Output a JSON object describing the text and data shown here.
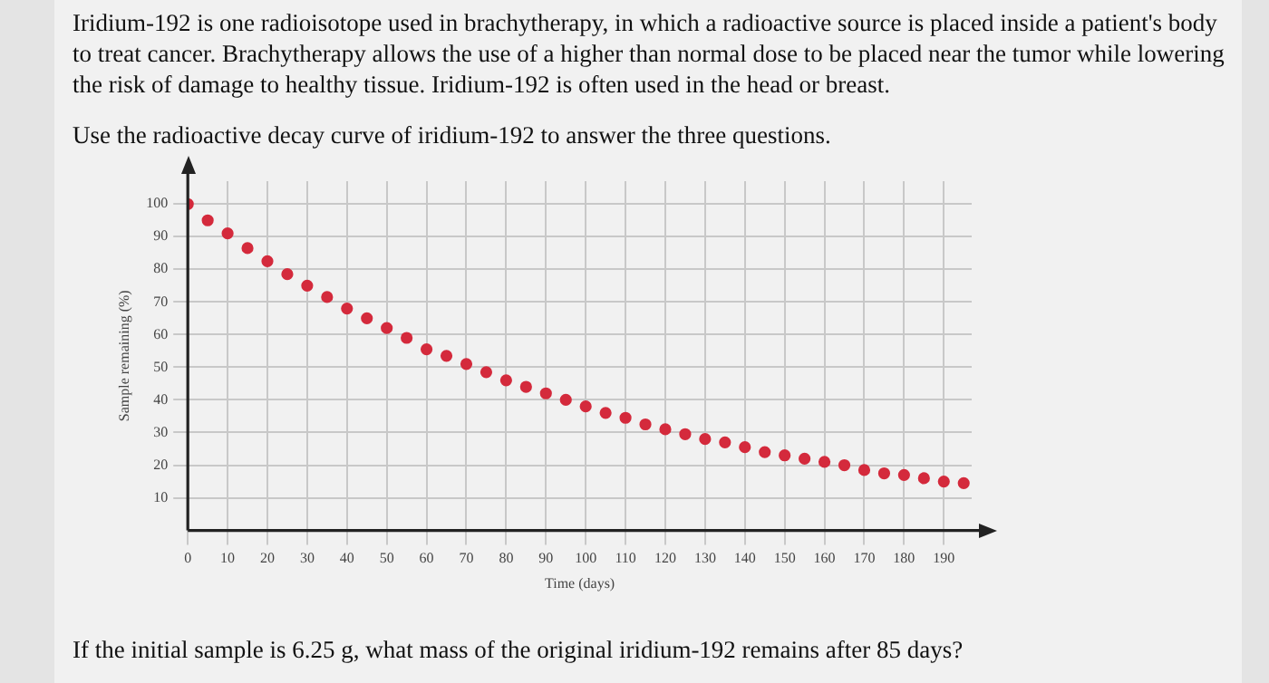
{
  "chart_data": {
    "type": "scatter",
    "xlabel": "Time (days)",
    "ylabel": "Sample remaining (%)",
    "annotations": [
      "Iridium-192 is one radioisotope used in brachytherapy, in which a radioactive source is placed inside a patient's body to treat cancer. Brachytherapy allows the use of a higher than normal dose to be placed near the tumor while lowering the risk of damage to healthy tissue. Iridium-192 is often used in the head or breast.",
      "Use the radioactive decay curve of iridium-192 to answer the three questions.",
      "If the initial sample is 6.25 g, what mass of the original iridium-192 remains after 85 days?"
    ],
    "x": [
      0,
      5,
      10,
      15,
      20,
      25,
      30,
      35,
      40,
      45,
      50,
      55,
      60,
      65,
      70,
      75,
      80,
      85,
      90,
      95,
      100,
      105,
      110,
      115,
      120,
      125,
      130,
      135,
      140,
      145,
      150,
      155,
      160,
      165,
      170,
      175,
      180,
      185,
      190,
      195
    ],
    "series": [
      {
        "color": "#d42a3c",
        "values": [
          100,
          95,
          91,
          86.5,
          82.5,
          78.5,
          75,
          71.5,
          68,
          65,
          62,
          59,
          55.5,
          53.5,
          51,
          48.5,
          46,
          44,
          42,
          40,
          38,
          36,
          34.5,
          32.5,
          31,
          29.5,
          28,
          27,
          25.5,
          24,
          23,
          22,
          21,
          20,
          18.5,
          17.5,
          17,
          16,
          15,
          14.5
        ]
      }
    ],
    "xlim": [
      0,
      197
    ],
    "xticks": [
      0,
      10,
      20,
      30,
      40,
      50,
      60,
      70,
      80,
      90,
      100,
      110,
      120,
      130,
      140,
      150,
      160,
      170,
      180,
      190
    ],
    "ylim": [
      0,
      107
    ],
    "yticks": [
      10,
      20,
      30,
      40,
      50,
      60,
      70,
      80,
      90,
      100
    ],
    "grid": true,
    "marker": "circle",
    "legend": false
  }
}
